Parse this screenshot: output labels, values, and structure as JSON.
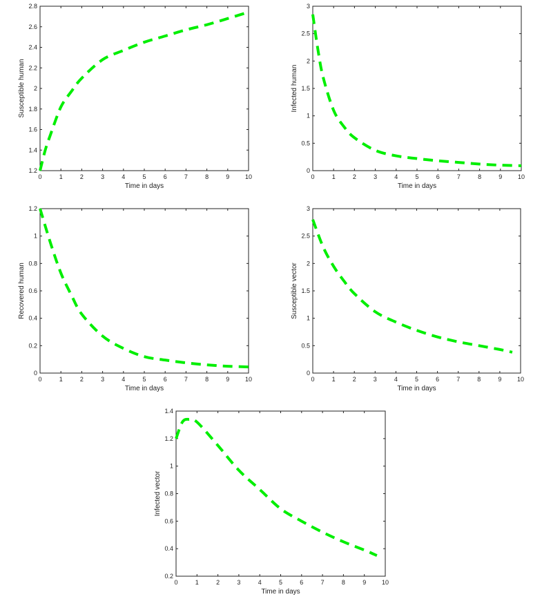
{
  "line_color": "#00ee00",
  "chart_data": [
    {
      "type": "line",
      "xlabel": "Time in days",
      "ylabel": "Susceptible human",
      "xlim": [
        0,
        10
      ],
      "ylim": [
        1.2,
        2.8
      ],
      "xticks": [
        "0",
        "1",
        "2",
        "3",
        "4",
        "5",
        "6",
        "7",
        "8",
        "9",
        "10"
      ],
      "yticks": [
        "1.2",
        "1.4",
        "1.6",
        "1.8",
        "2",
        "2.2",
        "2.4",
        "2.6",
        "2.8"
      ],
      "x": [
        0,
        0.25,
        0.5,
        1,
        1.5,
        2,
        3,
        4,
        5,
        6,
        7,
        8,
        9,
        9.8
      ],
      "y": [
        1.2,
        1.4,
        1.55,
        1.82,
        1.97,
        2.1,
        2.28,
        2.37,
        2.45,
        2.51,
        2.57,
        2.62,
        2.68,
        2.73
      ]
    },
    {
      "type": "line",
      "xlabel": "Time in days",
      "ylabel": "Infected human",
      "xlim": [
        0,
        10
      ],
      "ylim": [
        0,
        3
      ],
      "xticks": [
        "0",
        "1",
        "2",
        "3",
        "4",
        "5",
        "6",
        "7",
        "8",
        "9",
        "10"
      ],
      "yticks": [
        "0",
        "0.5",
        "1",
        "1.5",
        "2",
        "2.5",
        "3"
      ],
      "x": [
        0,
        0.25,
        0.5,
        1,
        1.5,
        2,
        3,
        4,
        5,
        6,
        7,
        8,
        9,
        10
      ],
      "y": [
        2.85,
        2.2,
        1.7,
        1.1,
        0.8,
        0.6,
        0.37,
        0.27,
        0.22,
        0.18,
        0.15,
        0.12,
        0.1,
        0.09
      ]
    },
    {
      "type": "line",
      "xlabel": "Time in days",
      "ylabel": "Recovered human",
      "xlim": [
        0,
        10
      ],
      "ylim": [
        0,
        1.2
      ],
      "xticks": [
        "0",
        "1",
        "2",
        "3",
        "4",
        "5",
        "6",
        "7",
        "8",
        "9",
        "10"
      ],
      "yticks": [
        "0",
        "0.2",
        "0.4",
        "0.6",
        "0.8",
        "1",
        "1.2"
      ],
      "x": [
        0,
        0.5,
        1,
        1.5,
        2,
        3,
        4,
        5,
        6,
        7,
        8,
        9,
        10
      ],
      "y": [
        1.2,
        0.95,
        0.73,
        0.57,
        0.43,
        0.27,
        0.18,
        0.12,
        0.095,
        0.075,
        0.06,
        0.05,
        0.045
      ]
    },
    {
      "type": "line",
      "xlabel": "Time in days",
      "ylabel": "Susceptible vector",
      "xlim": [
        0,
        10
      ],
      "ylim": [
        0,
        3
      ],
      "xticks": [
        "0",
        "1",
        "2",
        "3",
        "4",
        "5",
        "6",
        "7",
        "8",
        "9",
        "10"
      ],
      "yticks": [
        "0",
        "0.5",
        "1",
        "1.5",
        "2",
        "2.5",
        "3"
      ],
      "x": [
        0,
        0.5,
        1,
        1.5,
        2,
        3,
        4,
        5,
        6,
        7,
        8,
        9,
        9.6
      ],
      "y": [
        2.8,
        2.3,
        1.95,
        1.68,
        1.45,
        1.12,
        0.93,
        0.78,
        0.66,
        0.57,
        0.5,
        0.43,
        0.38
      ]
    },
    {
      "type": "line",
      "xlabel": "Time in days",
      "ylabel": "Infected vector",
      "xlim": [
        0,
        10
      ],
      "ylim": [
        0.2,
        1.4
      ],
      "xticks": [
        "0",
        "1",
        "2",
        "3",
        "4",
        "5",
        "6",
        "7",
        "8",
        "9",
        "10"
      ],
      "yticks": [
        "0.2",
        "0.4",
        "0.6",
        "0.8",
        "1",
        "1.2",
        "1.4"
      ],
      "x": [
        0,
        0.3,
        0.6,
        1,
        2,
        3,
        4,
        5,
        6,
        7,
        8,
        9,
        9.6
      ],
      "y": [
        1.2,
        1.32,
        1.34,
        1.32,
        1.15,
        0.97,
        0.83,
        0.69,
        0.6,
        0.52,
        0.45,
        0.39,
        0.35
      ]
    }
  ]
}
